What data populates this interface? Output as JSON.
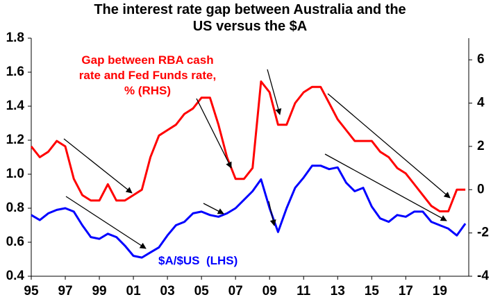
{
  "chart_data": {
    "type": "line",
    "title": "The interest rate gap between Australia and the US versus the $A",
    "x": [
      1995,
      1995.5,
      1996,
      1996.5,
      1997,
      1997.5,
      1998,
      1998.5,
      1999,
      1999.5,
      2000,
      2000.5,
      2001,
      2001.5,
      2002,
      2002.5,
      2003,
      2003.5,
      2004,
      2004.5,
      2005,
      2005.5,
      2006,
      2006.5,
      2007,
      2007.5,
      2008,
      2008.5,
      2009,
      2009.5,
      2010,
      2010.5,
      2011,
      2011.5,
      2012,
      2012.5,
      2013,
      2013.5,
      2014,
      2014.5,
      2015,
      2015.5,
      2016,
      2016.5,
      2017,
      2017.5,
      2018,
      2018.5,
      2019,
      2019.5,
      2020,
      2020.5
    ],
    "series": [
      {
        "name": "Gap between RBA cash rate and Fed Funds rate, % (RHS)",
        "color": "#ff0000",
        "axis": "y2",
        "values": [
          2.0,
          1.5,
          1.75,
          2.25,
          2.0,
          0.5,
          -0.25,
          -0.5,
          -0.5,
          0.25,
          -0.5,
          -0.5,
          -0.25,
          0.0,
          1.5,
          2.5,
          2.75,
          3.0,
          3.5,
          3.75,
          4.25,
          4.25,
          3.0,
          1.5,
          0.5,
          0.5,
          1.0,
          5.0,
          4.5,
          3.0,
          3.0,
          4.0,
          4.5,
          4.75,
          4.75,
          4.0,
          3.25,
          2.75,
          2.25,
          2.25,
          2.25,
          1.75,
          1.5,
          1.0,
          0.75,
          0.25,
          -0.25,
          -0.75,
          -1.0,
          -1.0,
          0.0,
          0.0
        ]
      },
      {
        "name": "$A/$US  (LHS)",
        "color": "#0000ff",
        "values": [
          0.76,
          0.73,
          0.77,
          0.79,
          0.8,
          0.78,
          0.7,
          0.63,
          0.62,
          0.65,
          0.63,
          0.58,
          0.52,
          0.51,
          0.54,
          0.57,
          0.64,
          0.7,
          0.72,
          0.77,
          0.78,
          0.76,
          0.75,
          0.77,
          0.8,
          0.85,
          0.9,
          0.97,
          0.8,
          0.66,
          0.8,
          0.92,
          0.98,
          1.05,
          1.05,
          1.03,
          1.04,
          0.95,
          0.9,
          0.92,
          0.81,
          0.74,
          0.72,
          0.76,
          0.75,
          0.78,
          0.78,
          0.72,
          0.7,
          0.68,
          0.64,
          0.71
        ]
      }
    ],
    "xlim": [
      1995,
      2020.7
    ],
    "xticks": [
      {
        "value": 1995,
        "label": "95"
      },
      {
        "value": 1997,
        "label": "97"
      },
      {
        "value": 1999,
        "label": "99"
      },
      {
        "value": 2001,
        "label": "01"
      },
      {
        "value": 2003,
        "label": "03"
      },
      {
        "value": 2005,
        "label": "05"
      },
      {
        "value": 2007,
        "label": "07"
      },
      {
        "value": 2009,
        "label": "09"
      },
      {
        "value": 2011,
        "label": "11"
      },
      {
        "value": 2013,
        "label": "13"
      },
      {
        "value": 2015,
        "label": "15"
      },
      {
        "value": 2017,
        "label": "17"
      },
      {
        "value": 2019,
        "label": "19"
      }
    ],
    "ylim": [
      0.4,
      1.8
    ],
    "yticks": [
      0.4,
      0.6,
      0.8,
      {
        "value": 1,
        "label": "1.0"
      },
      1.2,
      1.4,
      1.6,
      1.8
    ],
    "y2lim": [
      -4,
      7
    ],
    "y2ticks": [
      -4,
      -2,
      0,
      2,
      4,
      6
    ],
    "grid": false
  }
}
